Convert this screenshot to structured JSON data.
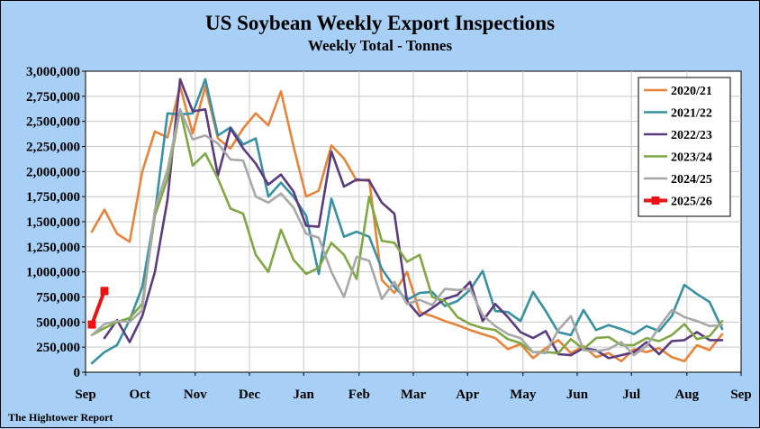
{
  "chart_data": {
    "type": "line",
    "title": "US Soybean Weekly Export Inspections",
    "subtitle": "Weekly Total - Tonnes",
    "source": "The Hightower Report",
    "ylim": [
      0,
      3000000
    ],
    "yticks": [
      0,
      250000,
      500000,
      750000,
      1000000,
      1250000,
      1500000,
      1750000,
      2000000,
      2250000,
      2500000,
      2750000,
      3000000
    ],
    "ytick_labels": [
      "0",
      "250,000",
      "500,000",
      "750,000",
      "1,000,000",
      "1,250,000",
      "1,500,000",
      "1,750,000",
      "2,000,000",
      "2,250,000",
      "2,500,000",
      "2,750,000",
      "3,000,000"
    ],
    "xlim": [
      0,
      52
    ],
    "xticks": [
      {
        "label": "Sep",
        "x": 0
      },
      {
        "label": "Oct",
        "x": 4.3
      },
      {
        "label": "Nov",
        "x": 8.7
      },
      {
        "label": "Dec",
        "x": 13
      },
      {
        "label": "Jan",
        "x": 17.3
      },
      {
        "label": "Feb",
        "x": 21.7
      },
      {
        "label": "Mar",
        "x": 26
      },
      {
        "label": "Apr",
        "x": 30.3
      },
      {
        "label": "May",
        "x": 34.7
      },
      {
        "label": "Jun",
        "x": 39
      },
      {
        "label": "Jul",
        "x": 43.3
      },
      {
        "label": "Aug",
        "x": 47.7
      },
      {
        "label": "Sep",
        "x": 52
      }
    ],
    "grid": true,
    "legend_position": "top-right",
    "series": [
      {
        "name": "2020/21",
        "color": "#e8843a",
        "x0": 0.5,
        "values": [
          1400000,
          1620000,
          1380000,
          1300000,
          2000000,
          2400000,
          2340000,
          2850000,
          2380000,
          2850000,
          2330000,
          2230000,
          2430000,
          2580000,
          2460000,
          2800000,
          2250000,
          1750000,
          1810000,
          2260000,
          2130000,
          1910000,
          1920000,
          920000,
          790000,
          1000000,
          600000,
          560000,
          510000,
          470000,
          420000,
          380000,
          340000,
          230000,
          280000,
          140000,
          240000,
          320000,
          190000,
          260000,
          150000,
          190000,
          110000,
          230000,
          200000,
          240000,
          150000,
          110000,
          270000,
          220000,
          380000
        ]
      },
      {
        "name": "2021/22",
        "color": "#3791a3",
        "x0": 0.5,
        "values": [
          90000,
          200000,
          270000,
          520000,
          850000,
          1580000,
          2580000,
          2570000,
          2580000,
          2920000,
          2360000,
          2440000,
          2270000,
          2330000,
          1750000,
          1890000,
          1750000,
          1560000,
          980000,
          1730000,
          1350000,
          1400000,
          1350000,
          1030000,
          850000,
          720000,
          790000,
          800000,
          660000,
          710000,
          820000,
          1010000,
          610000,
          600000,
          510000,
          800000,
          610000,
          400000,
          370000,
          620000,
          420000,
          470000,
          430000,
          380000,
          460000,
          410000,
          560000,
          870000,
          780000,
          700000,
          430000
        ]
      },
      {
        "name": "2022/23",
        "color": "#5b3b80",
        "x0": 1.5,
        "values": [
          340000,
          520000,
          300000,
          560000,
          1000000,
          1720000,
          2920000,
          2600000,
          2620000,
          1960000,
          2430000,
          2230000,
          2080000,
          1870000,
          1970000,
          1800000,
          1460000,
          1450000,
          2200000,
          1850000,
          1920000,
          1910000,
          1690000,
          1580000,
          710000,
          560000,
          640000,
          730000,
          770000,
          900000,
          510000,
          680000,
          550000,
          400000,
          340000,
          410000,
          180000,
          170000,
          240000,
          220000,
          140000,
          170000,
          200000,
          300000,
          180000,
          310000,
          320000,
          400000,
          320000,
          320000
        ]
      },
      {
        "name": "2023/24",
        "color": "#7fa744",
        "x0": 0.5,
        "values": [
          370000,
          440000,
          500000,
          540000,
          680000,
          1560000,
          1930000,
          2620000,
          2060000,
          2180000,
          1930000,
          1630000,
          1580000,
          1170000,
          1000000,
          1420000,
          1120000,
          980000,
          1040000,
          1290000,
          1170000,
          930000,
          1750000,
          1310000,
          1290000,
          1100000,
          1170000,
          750000,
          710000,
          550000,
          480000,
          440000,
          420000,
          330000,
          290000,
          200000,
          200000,
          190000,
          330000,
          230000,
          340000,
          350000,
          270000,
          270000,
          340000,
          310000,
          370000,
          480000,
          330000,
          360000,
          510000
        ]
      },
      {
        "name": "2024/25",
        "color": "#a8a8a8",
        "x0": 0.5,
        "values": [
          370000,
          480000,
          510000,
          500000,
          620000,
          1620000,
          2020000,
          2620000,
          2320000,
          2360000,
          2280000,
          2120000,
          2110000,
          1750000,
          1690000,
          1780000,
          1640000,
          1380000,
          1340000,
          1000000,
          750000,
          1150000,
          1110000,
          730000,
          900000,
          680000,
          720000,
          670000,
          830000,
          820000,
          830000,
          570000,
          460000,
          380000,
          340000,
          200000,
          190000,
          420000,
          560000,
          220000,
          210000,
          230000,
          300000,
          170000,
          260000,
          450000,
          620000,
          550000,
          510000,
          460000,
          470000
        ]
      },
      {
        "name": "2025/26",
        "color": "#ee1111",
        "x0": 0.5,
        "markers": true,
        "values": [
          475000,
          810000
        ]
      }
    ]
  }
}
